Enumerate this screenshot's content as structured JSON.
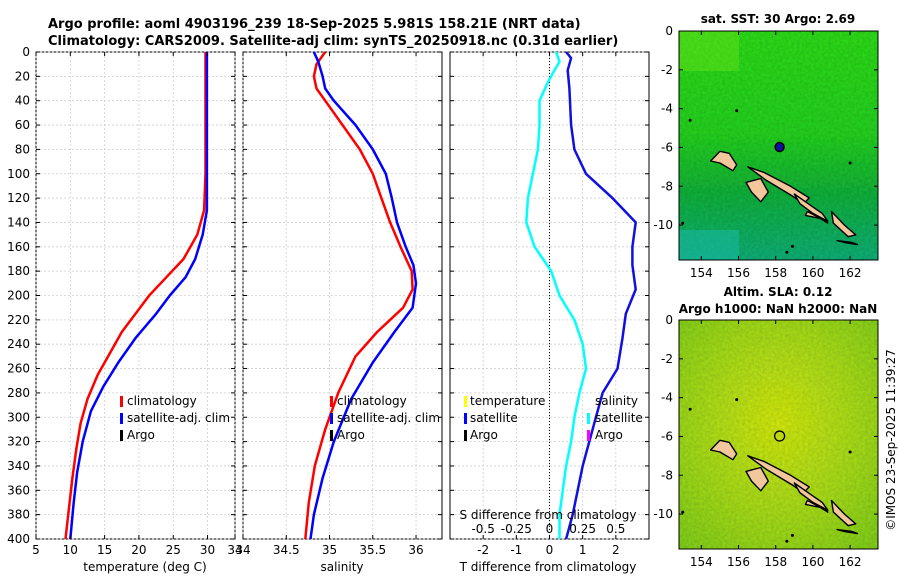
{
  "title": {
    "line1": "Argo profile: aoml 4903196_239 18-Sep-2025 5.981S 158.21E (NRT data)",
    "line2": "Climatology: CARS2009. Satellite-adj clim: synTS_20250918.nc (0.31d earlier)"
  },
  "watermark": "©IMOS 23-Sep-2025 11:39:27",
  "colors": {
    "climatology": "#ff0000",
    "satellite": "#0000ff",
    "argo": "#000000",
    "temp_diff": "#00ffff",
    "sal_diff_sat": "#1010e0",
    "sal_diff_argo": "#ff00ff"
  },
  "chart_data": [
    {
      "type": "line",
      "name": "temperature",
      "xlabel": "temperature (deg C)",
      "xlim": [
        5,
        34
      ],
      "ylim": [
        0,
        400
      ],
      "y_reversed": true,
      "xticks": [
        5,
        10,
        15,
        20,
        25,
        30,
        34
      ],
      "yticks": [
        0,
        20,
        40,
        60,
        80,
        100,
        120,
        140,
        160,
        180,
        200,
        220,
        240,
        260,
        280,
        300,
        320,
        340,
        360,
        380,
        400
      ],
      "legend": [
        "climatology",
        "satellite-adj. clim",
        "Argo"
      ],
      "series": [
        {
          "name": "climatology",
          "color": "#ff0000",
          "points": [
            [
              29.7,
              0
            ],
            [
              29.7,
              50
            ],
            [
              29.7,
              100
            ],
            [
              29.5,
              130
            ],
            [
              28.5,
              150
            ],
            [
              26.5,
              170
            ],
            [
              24.0,
              185
            ],
            [
              21.5,
              200
            ],
            [
              19.5,
              215
            ],
            [
              17.5,
              230
            ],
            [
              15.5,
              250
            ],
            [
              14.0,
              265
            ],
            [
              12.5,
              285
            ],
            [
              11.5,
              305
            ],
            [
              10.9,
              325
            ],
            [
              10.3,
              350
            ],
            [
              9.8,
              375
            ],
            [
              9.3,
              400
            ]
          ]
        },
        {
          "name": "satellite-adj. clim",
          "color": "#0000ff",
          "points": [
            [
              29.9,
              0
            ],
            [
              29.9,
              60
            ],
            [
              29.9,
              100
            ],
            [
              29.9,
              130
            ],
            [
              29.3,
              150
            ],
            [
              28.2,
              170
            ],
            [
              26.8,
              185
            ],
            [
              24.5,
              200
            ],
            [
              22.5,
              215
            ],
            [
              19.5,
              235
            ],
            [
              17.0,
              255
            ],
            [
              14.8,
              275
            ],
            [
              13.0,
              295
            ],
            [
              11.8,
              320
            ],
            [
              11.0,
              345
            ],
            [
              10.5,
              370
            ],
            [
              10.0,
              400
            ]
          ]
        }
      ]
    },
    {
      "type": "line",
      "name": "salinity",
      "xlabel": "salinity",
      "xlim": [
        34,
        36.3
      ],
      "ylim": [
        0,
        400
      ],
      "y_reversed": true,
      "xticks": [
        34,
        34.5,
        35,
        35.5,
        36
      ],
      "legend": [
        "climatology",
        "satellite-adj. clim",
        "Argo"
      ],
      "series": [
        {
          "name": "climatology",
          "color": "#ff0000",
          "points": [
            [
              34.95,
              0
            ],
            [
              34.85,
              10
            ],
            [
              34.82,
              20
            ],
            [
              34.85,
              30
            ],
            [
              34.95,
              40
            ],
            [
              35.15,
              60
            ],
            [
              35.35,
              80
            ],
            [
              35.5,
              100
            ],
            [
              35.6,
              120
            ],
            [
              35.7,
              140
            ],
            [
              35.82,
              160
            ],
            [
              35.95,
              180
            ],
            [
              35.96,
              195
            ],
            [
              35.85,
              210
            ],
            [
              35.55,
              230
            ],
            [
              35.3,
              250
            ],
            [
              35.1,
              280
            ],
            [
              34.95,
              310
            ],
            [
              34.83,
              340
            ],
            [
              34.76,
              370
            ],
            [
              34.72,
              400
            ]
          ]
        },
        {
          "name": "satellite-adj. clim",
          "color": "#0000ff",
          "points": [
            [
              34.82,
              0
            ],
            [
              34.87,
              8
            ],
            [
              34.92,
              20
            ],
            [
              34.95,
              30
            ],
            [
              35.05,
              40
            ],
            [
              35.3,
              60
            ],
            [
              35.5,
              80
            ],
            [
              35.65,
              100
            ],
            [
              35.72,
              120
            ],
            [
              35.78,
              140
            ],
            [
              35.88,
              160
            ],
            [
              35.97,
              175
            ],
            [
              36.0,
              190
            ],
            [
              35.96,
              210
            ],
            [
              35.75,
              230
            ],
            [
              35.5,
              255
            ],
            [
              35.25,
              285
            ],
            [
              35.05,
              320
            ],
            [
              34.92,
              350
            ],
            [
              34.82,
              380
            ],
            [
              34.78,
              400
            ]
          ]
        }
      ]
    },
    {
      "type": "line",
      "name": "differences",
      "xlabel": "T difference from climatology",
      "xlabel_top": "S difference from climatology",
      "xlim": [
        -3,
        3
      ],
      "ylim": [
        0,
        400
      ],
      "y_reversed": true,
      "xticks": [
        -2,
        -1,
        0,
        1,
        2
      ],
      "xticks_S": [
        -0.5,
        -0.25,
        0,
        0.25,
        0.5
      ],
      "legend": [
        "temperature",
        "satellite",
        "Argo",
        "salinity",
        "satellite",
        "Argo"
      ],
      "series": [
        {
          "name": "temperature satellite",
          "color": "#00ffff",
          "points": [
            [
              0.2,
              0
            ],
            [
              0.3,
              8
            ],
            [
              0.15,
              15
            ],
            [
              -0.05,
              25
            ],
            [
              -0.3,
              40
            ],
            [
              -0.3,
              60
            ],
            [
              -0.35,
              80
            ],
            [
              -0.5,
              100
            ],
            [
              -0.65,
              120
            ],
            [
              -0.7,
              140
            ],
            [
              -0.45,
              160
            ],
            [
              0.05,
              180
            ],
            [
              0.3,
              200
            ],
            [
              0.75,
              220
            ],
            [
              1.0,
              240
            ],
            [
              1.1,
              260
            ],
            [
              0.9,
              280
            ],
            [
              0.75,
              300
            ],
            [
              0.65,
              320
            ],
            [
              0.5,
              340
            ],
            [
              0.4,
              360
            ],
            [
              0.3,
              380
            ],
            [
              0.3,
              400
            ]
          ]
        },
        {
          "name": "salinity satellite",
          "color": "#1010e0",
          "points": [
            [
              0.5,
              0
            ],
            [
              0.65,
              5
            ],
            [
              0.55,
              15
            ],
            [
              0.6,
              30
            ],
            [
              0.65,
              60
            ],
            [
              0.75,
              80
            ],
            [
              1.1,
              100
            ],
            [
              1.9,
              120
            ],
            [
              2.6,
              140
            ],
            [
              2.5,
              160
            ],
            [
              2.5,
              175
            ],
            [
              2.6,
              195
            ],
            [
              2.3,
              215
            ],
            [
              2.2,
              235
            ],
            [
              2.05,
              260
            ],
            [
              1.6,
              280
            ],
            [
              1.4,
              300
            ],
            [
              1.2,
              320
            ],
            [
              1.0,
              340
            ],
            [
              0.85,
              360
            ],
            [
              0.7,
              380
            ],
            [
              0.5,
              400
            ]
          ]
        }
      ]
    }
  ],
  "maps": {
    "sst": {
      "title": "sat. SST: 30 Argo: 2.69",
      "xticks": [
        154,
        156,
        158,
        160,
        162
      ],
      "yticks": [
        0,
        -2,
        -4,
        -6,
        -8,
        -10
      ],
      "xlim": [
        152.8,
        163.5
      ],
      "ylim": [
        -11.8,
        0
      ],
      "argo_lon": 158.21,
      "argo_lat": -5.98
    },
    "sla": {
      "title1": "Altim. SLA: 0.12",
      "title2": "Argo h1000: NaN h2000: NaN",
      "xticks": [
        154,
        156,
        158,
        160,
        162
      ],
      "yticks": [
        0,
        -2,
        -4,
        -6,
        -8,
        -10
      ],
      "xlim": [
        152.8,
        163.5
      ],
      "ylim": [
        -11.8,
        0
      ],
      "argo_lon": 158.21,
      "argo_lat": -5.98
    }
  }
}
